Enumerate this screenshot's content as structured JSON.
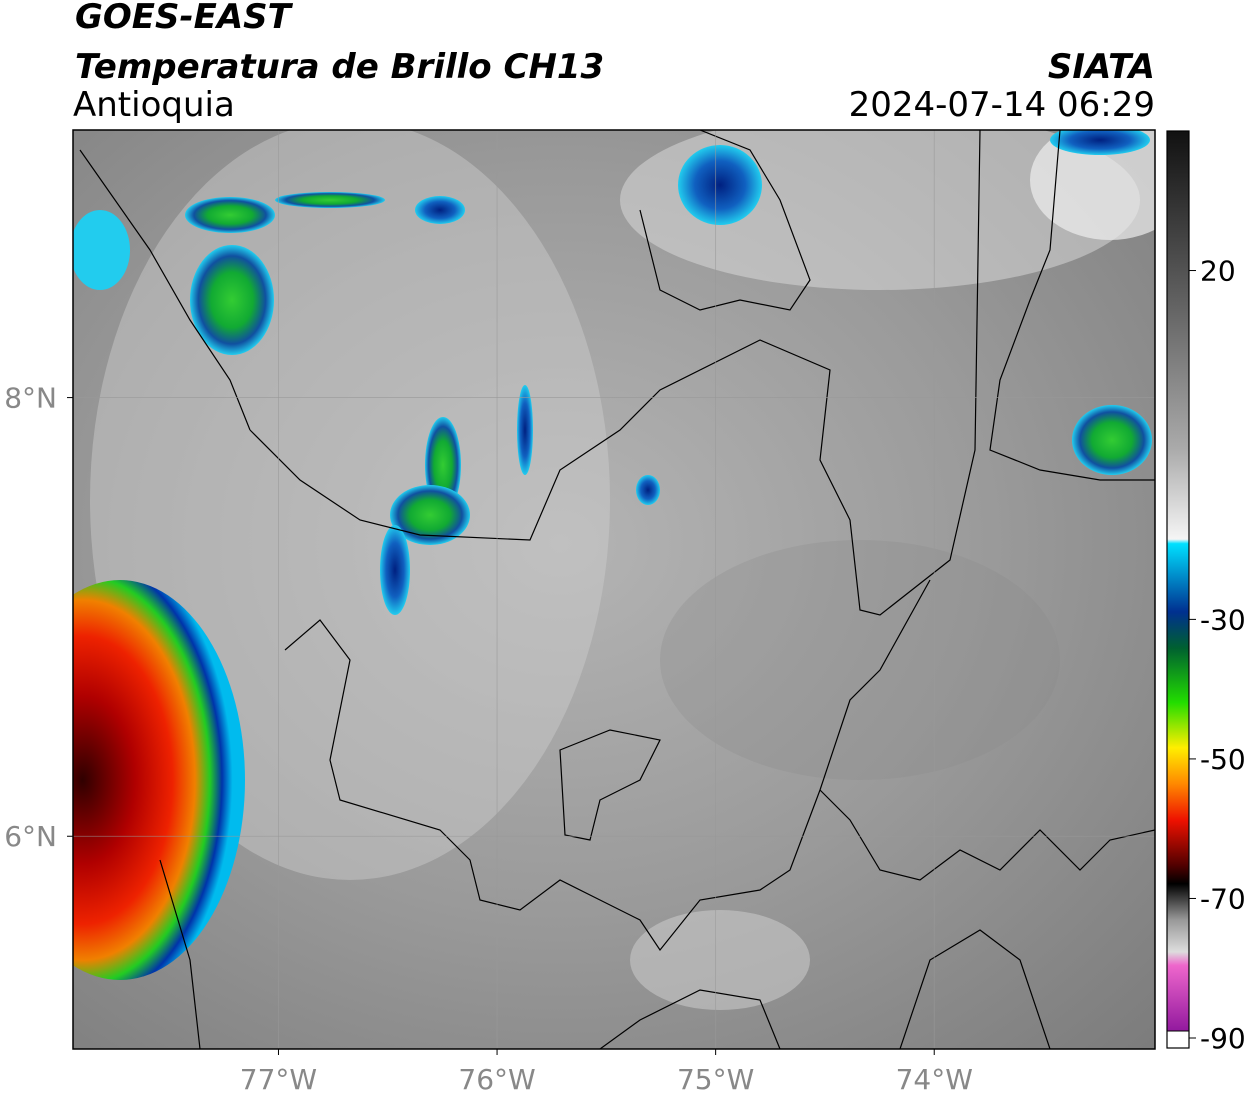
{
  "map": {
    "title": "GOES-EAST",
    "subtitle": "Temperatura de Brillo CH13",
    "region": "Antioquia",
    "source": "SIATA",
    "datetime": "2024-07-14 06:29",
    "xlim": [
      -77.94,
      -72.99
    ],
    "ylim": [
      5.03,
      9.22
    ],
    "xticks": [
      {
        "value": -77,
        "label": "77°W"
      },
      {
        "value": -76,
        "label": "76°W"
      },
      {
        "value": -75,
        "label": "75°W"
      },
      {
        "value": -74,
        "label": "74°W"
      }
    ],
    "yticks": [
      {
        "value": 8,
        "label": "8°N"
      },
      {
        "value": 6,
        "label": "6°N"
      }
    ],
    "grid": true,
    "colorbar": {
      "lim": [
        -90,
        40
      ],
      "ticks": [
        20,
        -30,
        -50,
        -70,
        -90
      ]
    }
  }
}
